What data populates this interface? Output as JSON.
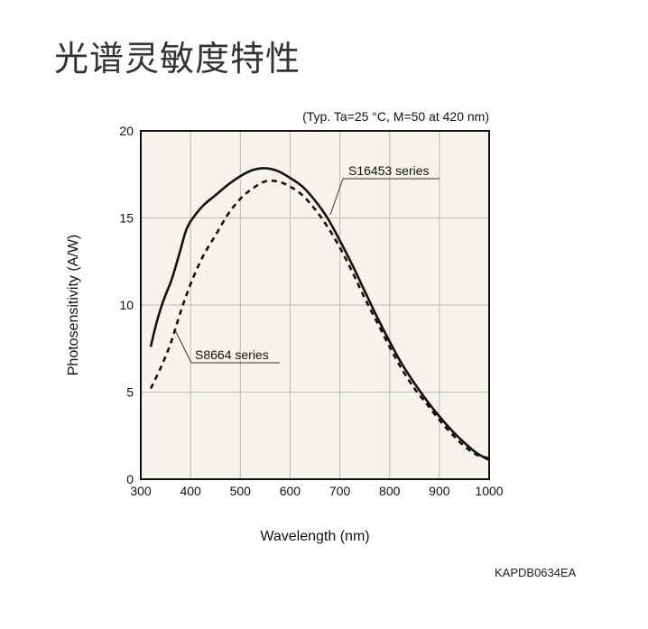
{
  "page": {
    "title": "光谱灵敏度特性",
    "document_code": "KAPDB0634EA"
  },
  "chart_data": {
    "type": "line",
    "conditions": "(Typ. Ta=25 °C, M=50 at 420 nm)",
    "xlabel": "Wavelength (nm)",
    "ylabel": "Photosensitivity (A/W)",
    "xlim": [
      300,
      1000
    ],
    "ylim": [
      0,
      20
    ],
    "xticks": [
      300,
      400,
      500,
      600,
      700,
      800,
      900,
      1000
    ],
    "yticks": [
      0,
      5,
      10,
      15,
      20
    ],
    "grid": true,
    "colors": {
      "plot_background": "#f5f3ea",
      "line": "#111111",
      "grid": "#b9b9b9"
    },
    "series": [
      {
        "name": "S16453 series",
        "style": "solid",
        "points": [
          [
            320,
            7.6
          ],
          [
            330,
            8.8
          ],
          [
            340,
            9.8
          ],
          [
            350,
            10.6
          ],
          [
            360,
            11.3
          ],
          [
            370,
            12.2
          ],
          [
            380,
            13.2
          ],
          [
            390,
            14.2
          ],
          [
            400,
            14.8
          ],
          [
            425,
            15.7
          ],
          [
            450,
            16.3
          ],
          [
            475,
            16.9
          ],
          [
            500,
            17.4
          ],
          [
            525,
            17.75
          ],
          [
            550,
            17.85
          ],
          [
            575,
            17.7
          ],
          [
            600,
            17.3
          ],
          [
            625,
            16.8
          ],
          [
            650,
            16.0
          ],
          [
            675,
            15.0
          ],
          [
            700,
            13.7
          ],
          [
            725,
            12.3
          ],
          [
            750,
            10.8
          ],
          [
            775,
            9.3
          ],
          [
            800,
            7.9
          ],
          [
            825,
            6.6
          ],
          [
            850,
            5.5
          ],
          [
            875,
            4.5
          ],
          [
            900,
            3.6
          ],
          [
            925,
            2.8
          ],
          [
            950,
            2.1
          ],
          [
            975,
            1.5
          ],
          [
            1000,
            1.1
          ]
        ]
      },
      {
        "name": "S8664 series",
        "style": "dashed",
        "points": [
          [
            320,
            5.2
          ],
          [
            340,
            6.4
          ],
          [
            360,
            7.8
          ],
          [
            380,
            9.6
          ],
          [
            400,
            11.2
          ],
          [
            425,
            12.8
          ],
          [
            450,
            14.0
          ],
          [
            475,
            15.2
          ],
          [
            500,
            16.1
          ],
          [
            525,
            16.7
          ],
          [
            550,
            17.1
          ],
          [
            575,
            17.1
          ],
          [
            600,
            16.8
          ],
          [
            625,
            16.3
          ],
          [
            650,
            15.5
          ],
          [
            675,
            14.5
          ],
          [
            700,
            13.3
          ],
          [
            725,
            11.9
          ],
          [
            750,
            10.4
          ],
          [
            775,
            9.0
          ],
          [
            800,
            7.6
          ],
          [
            825,
            6.3
          ],
          [
            850,
            5.2
          ],
          [
            875,
            4.3
          ],
          [
            900,
            3.4
          ],
          [
            925,
            2.6
          ],
          [
            950,
            1.9
          ],
          [
            975,
            1.4
          ],
          [
            1000,
            1.2
          ]
        ]
      }
    ],
    "annotations": [
      {
        "text": "S16453 series",
        "series": 0
      },
      {
        "text": "S8664 series",
        "series": 1
      }
    ]
  }
}
